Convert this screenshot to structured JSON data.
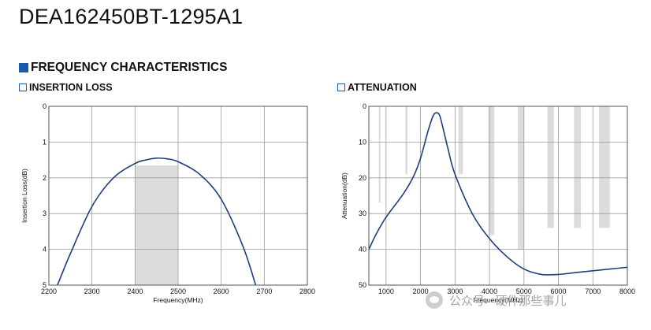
{
  "header": {
    "part_number": "DEA162450BT-1295A1",
    "section_title": "FREQUENCY CHARACTERISTICS"
  },
  "colors": {
    "accent": "#1c5aa6",
    "curve": "#1f3f7a",
    "band": "#dcdcdc",
    "grid": "#9a9a9a"
  },
  "chart_data": [
    {
      "type": "line",
      "title": "INSERTION LOSS",
      "xlabel": "Frequency(MHz)",
      "ylabel": "Insertion Loss(dB)",
      "xlim": [
        2200,
        2800
      ],
      "ylim": [
        0,
        5
      ],
      "y_inverted": true,
      "grid": true,
      "x_ticks": [
        "2200",
        "2300",
        "2400",
        "2500",
        "2600",
        "2700",
        "2800"
      ],
      "y_ticks": [
        "0",
        "1",
        "2",
        "3",
        "4",
        "5"
      ],
      "passband": {
        "x_start": 2400,
        "x_end": 2500,
        "y_top": 1.65
      },
      "series": [
        {
          "x": [
            2220,
            2250,
            2300,
            2350,
            2400,
            2425,
            2450,
            2475,
            2500,
            2550,
            2600,
            2650,
            2680
          ],
          "y": [
            5.0,
            4.12,
            2.8,
            2.0,
            1.6,
            1.5,
            1.45,
            1.47,
            1.55,
            1.9,
            2.6,
            3.9,
            5.0
          ]
        }
      ]
    },
    {
      "type": "line",
      "title": "ATTENUATION",
      "xlabel": "Frequency(MHz)",
      "ylabel": "Attenuation(dB)",
      "xlim": [
        500,
        8000
      ],
      "ylim": [
        0,
        50
      ],
      "y_inverted": true,
      "grid": true,
      "x_ticks": [
        "1000",
        "2000",
        "3000",
        "4000",
        "5000",
        "6000",
        "7000",
        "8000"
      ],
      "y_ticks": [
        "0",
        "10",
        "20",
        "30",
        "40",
        "50"
      ],
      "spec_bands": [
        {
          "x_start": 790,
          "x_end": 830,
          "y_bottom": 27
        },
        {
          "x_start": 1560,
          "x_end": 1620,
          "y_bottom": 19
        },
        {
          "x_start": 3100,
          "x_end": 3230,
          "y_bottom": 19
        },
        {
          "x_start": 3970,
          "x_end": 4140,
          "y_bottom": 36
        },
        {
          "x_start": 4820,
          "x_end": 5000,
          "y_bottom": 40
        },
        {
          "x_start": 5680,
          "x_end": 5870,
          "y_bottom": 34
        },
        {
          "x_start": 6450,
          "x_end": 6650,
          "y_bottom": 34
        },
        {
          "x_start": 7180,
          "x_end": 7490,
          "y_bottom": 34
        }
      ],
      "series": [
        {
          "x": [
            500,
            700,
            1000,
            1500,
            1800,
            2000,
            2200,
            2350,
            2450,
            2550,
            2650,
            2800,
            3000,
            3500,
            4000,
            4500,
            5000,
            5500,
            6000,
            6500,
            7000,
            7500,
            8000
          ],
          "y": [
            40,
            36,
            31,
            24.5,
            19.5,
            14.5,
            7.5,
            3,
            1.8,
            2.5,
            6,
            12,
            19,
            30,
            37,
            42,
            45.5,
            47,
            47,
            46.5,
            46,
            45.5,
            45
          ]
        }
      ]
    }
  ],
  "watermark": {
    "text": "公众号 · 硬件那些事儿"
  }
}
